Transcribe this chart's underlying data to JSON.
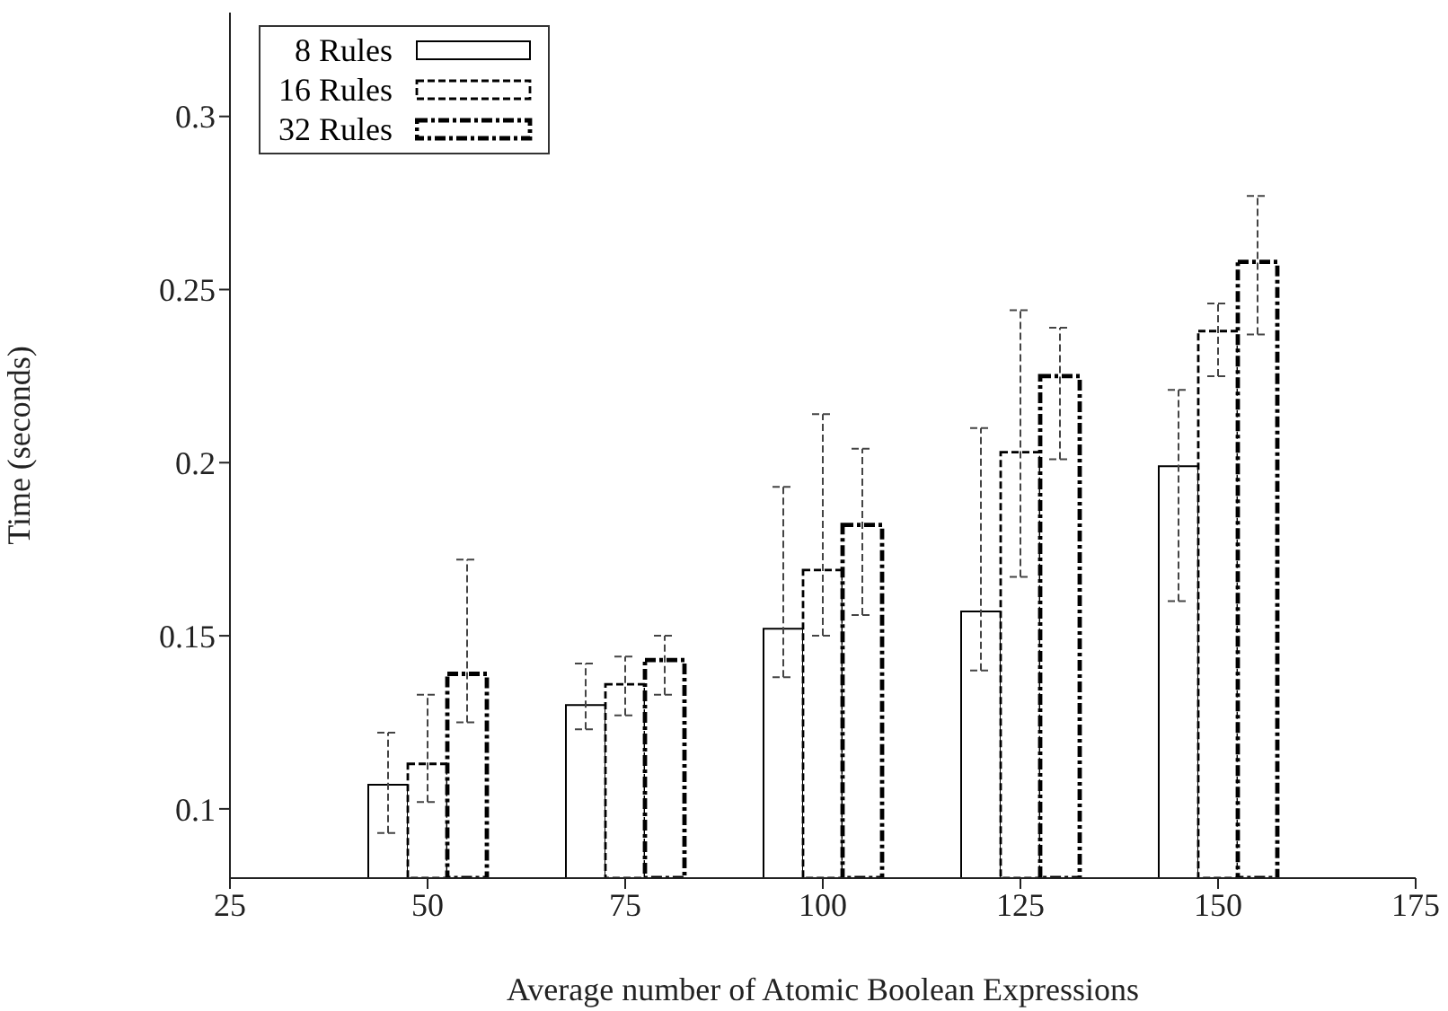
{
  "chart_data": {
    "type": "bar",
    "xlabel": "Average number of Atomic Boolean Expressions",
    "ylabel": "Time (seconds)",
    "x": [
      50,
      75,
      100,
      125,
      150
    ],
    "series": [
      {
        "name": "8 Rules",
        "color": "#000000",
        "line_style": "solid",
        "values": [
          0.107,
          0.13,
          0.152,
          0.157,
          0.199
        ],
        "errors": [
          [
            0.093,
            0.122
          ],
          [
            0.123,
            0.142
          ],
          [
            0.138,
            0.193
          ],
          [
            0.14,
            0.21
          ],
          [
            0.16,
            0.221
          ]
        ]
      },
      {
        "name": "16 Rules",
        "color": "#000000",
        "line_style": "dashed",
        "values": [
          0.113,
          0.136,
          0.169,
          0.203,
          0.238
        ],
        "errors": [
          [
            0.102,
            0.133
          ],
          [
            0.127,
            0.144
          ],
          [
            0.15,
            0.214
          ],
          [
            0.167,
            0.244
          ],
          [
            0.225,
            0.246
          ]
        ]
      },
      {
        "name": "32 Rules",
        "color": "#000000",
        "line_style": "dashed",
        "values": [
          0.139,
          0.143,
          0.182,
          0.225,
          0.258
        ],
        "errors": [
          [
            0.125,
            0.172
          ],
          [
            0.133,
            0.15
          ],
          [
            0.156,
            0.204
          ],
          [
            0.201,
            0.239
          ],
          [
            0.237,
            0.277
          ]
        ]
      }
    ],
    "xlim": [
      25,
      175
    ],
    "xticks": [
      25,
      50,
      75,
      100,
      125,
      150,
      175
    ],
    "ylim": [
      0.08,
      0.33
    ],
    "yticks": [
      0.1,
      0.15,
      0.2,
      0.25,
      0.3
    ],
    "legend": "top left"
  }
}
